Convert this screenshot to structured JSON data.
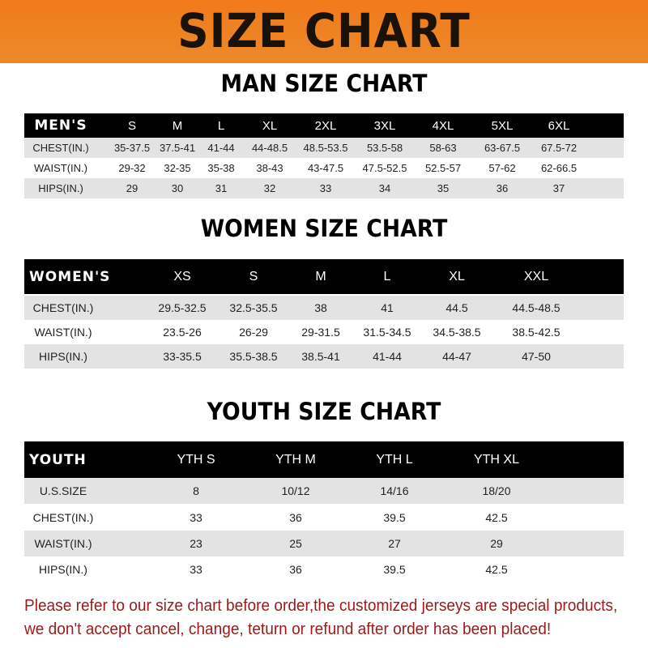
{
  "title": "SIZE CHART",
  "colors": {
    "banner": "#f07a1c",
    "header_row": "#000000",
    "shaded_row": "#e3e3e3",
    "notice": "#9a1a1a"
  },
  "men": {
    "title": "MAN SIZE CHART",
    "header": [
      "MEN'S",
      "S",
      "M",
      "L",
      "XL",
      "2XL",
      "3XL",
      "4XL",
      "5XL",
      "6XL"
    ],
    "rows": [
      [
        "CHEST(IN.)",
        "35-37.5",
        "37.5-41",
        "41-44",
        "44-48.5",
        "48.5-53.5",
        "53.5-58",
        "58-63",
        "63-67.5",
        "67.5-72"
      ],
      [
        "WAIST(IN.)",
        "29-32",
        "32-35",
        "35-38",
        "38-43",
        "43-47.5",
        "47.5-52.5",
        "52.5-57",
        "57-62",
        "62-66.5"
      ],
      [
        "HIPS(IN.)",
        "29",
        "30",
        "31",
        "32",
        "33",
        "34",
        "35",
        "36",
        "37"
      ]
    ]
  },
  "women": {
    "title": "WOMEN SIZE CHART",
    "header": [
      "WOMEN'S",
      "XS",
      "S",
      "M",
      "L",
      "XL",
      "XXL"
    ],
    "rows": [
      [
        "CHEST(IN.)",
        "29.5-32.5",
        "32.5-35.5",
        "38",
        "41",
        "44.5",
        "44.5-48.5"
      ],
      [
        "WAIST(IN.)",
        "23.5-26",
        "26-29",
        "29-31.5",
        "31.5-34.5",
        "34.5-38.5",
        "38.5-42.5"
      ],
      [
        "HIPS(IN.)",
        "33-35.5",
        "35.5-38.5",
        "38.5-41",
        "41-44",
        "44-47",
        "47-50"
      ]
    ]
  },
  "youth": {
    "title": "YOUTH SIZE CHART",
    "header": [
      "YOUTH",
      "YTH S",
      "YTH M",
      "YTH L",
      "YTH XL"
    ],
    "rows": [
      [
        "U.S.SIZE",
        "8",
        "10/12",
        "14/16",
        "18/20"
      ],
      [
        "CHEST(IN.)",
        "33",
        "36",
        "39.5",
        "42.5"
      ],
      [
        "WAIST(IN.)",
        "23",
        "25",
        "27",
        "29"
      ],
      [
        "HIPS(IN.)",
        "33",
        "36",
        "39.5",
        "42.5"
      ]
    ]
  },
  "notice": [
    "Please refer to our size chart before order,the customized jerseys are special products,",
    "we don't accept cancel, change, teturn or refund after order has been placed!"
  ]
}
